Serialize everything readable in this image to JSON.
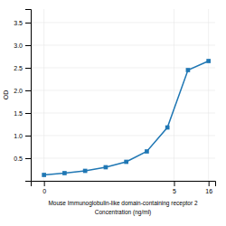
{
  "chart_data": {
    "type": "line",
    "xlabel": [
      "Mouse Immunoglobulin-like domain-containing receptor 2",
      "Concentration (ng/ml)"
    ],
    "ylabel": "OD",
    "log": "x",
    "grid": true,
    "marker": "square",
    "x": [
      0.0625,
      0.125,
      0.25,
      0.5,
      1,
      2,
      4,
      8,
      16
    ],
    "values": [
      0.13,
      0.17,
      0.22,
      0.3,
      0.42,
      0.65,
      1.18,
      2.45,
      2.65
    ],
    "xlim": [
      0.04,
      20
    ],
    "xticks": [
      {
        "value": 0.0625,
        "label": "0"
      },
      5,
      16
    ],
    "ylim": [
      0,
      3.8
    ],
    "yticks": [
      0.5,
      {
        "value": 1.0,
        "label": "1.0"
      },
      1.5,
      {
        "value": 2.0,
        "label": "2.0"
      },
      2.5,
      {
        "value": 3.0,
        "label": "3.0"
      },
      3.5
    ]
  }
}
